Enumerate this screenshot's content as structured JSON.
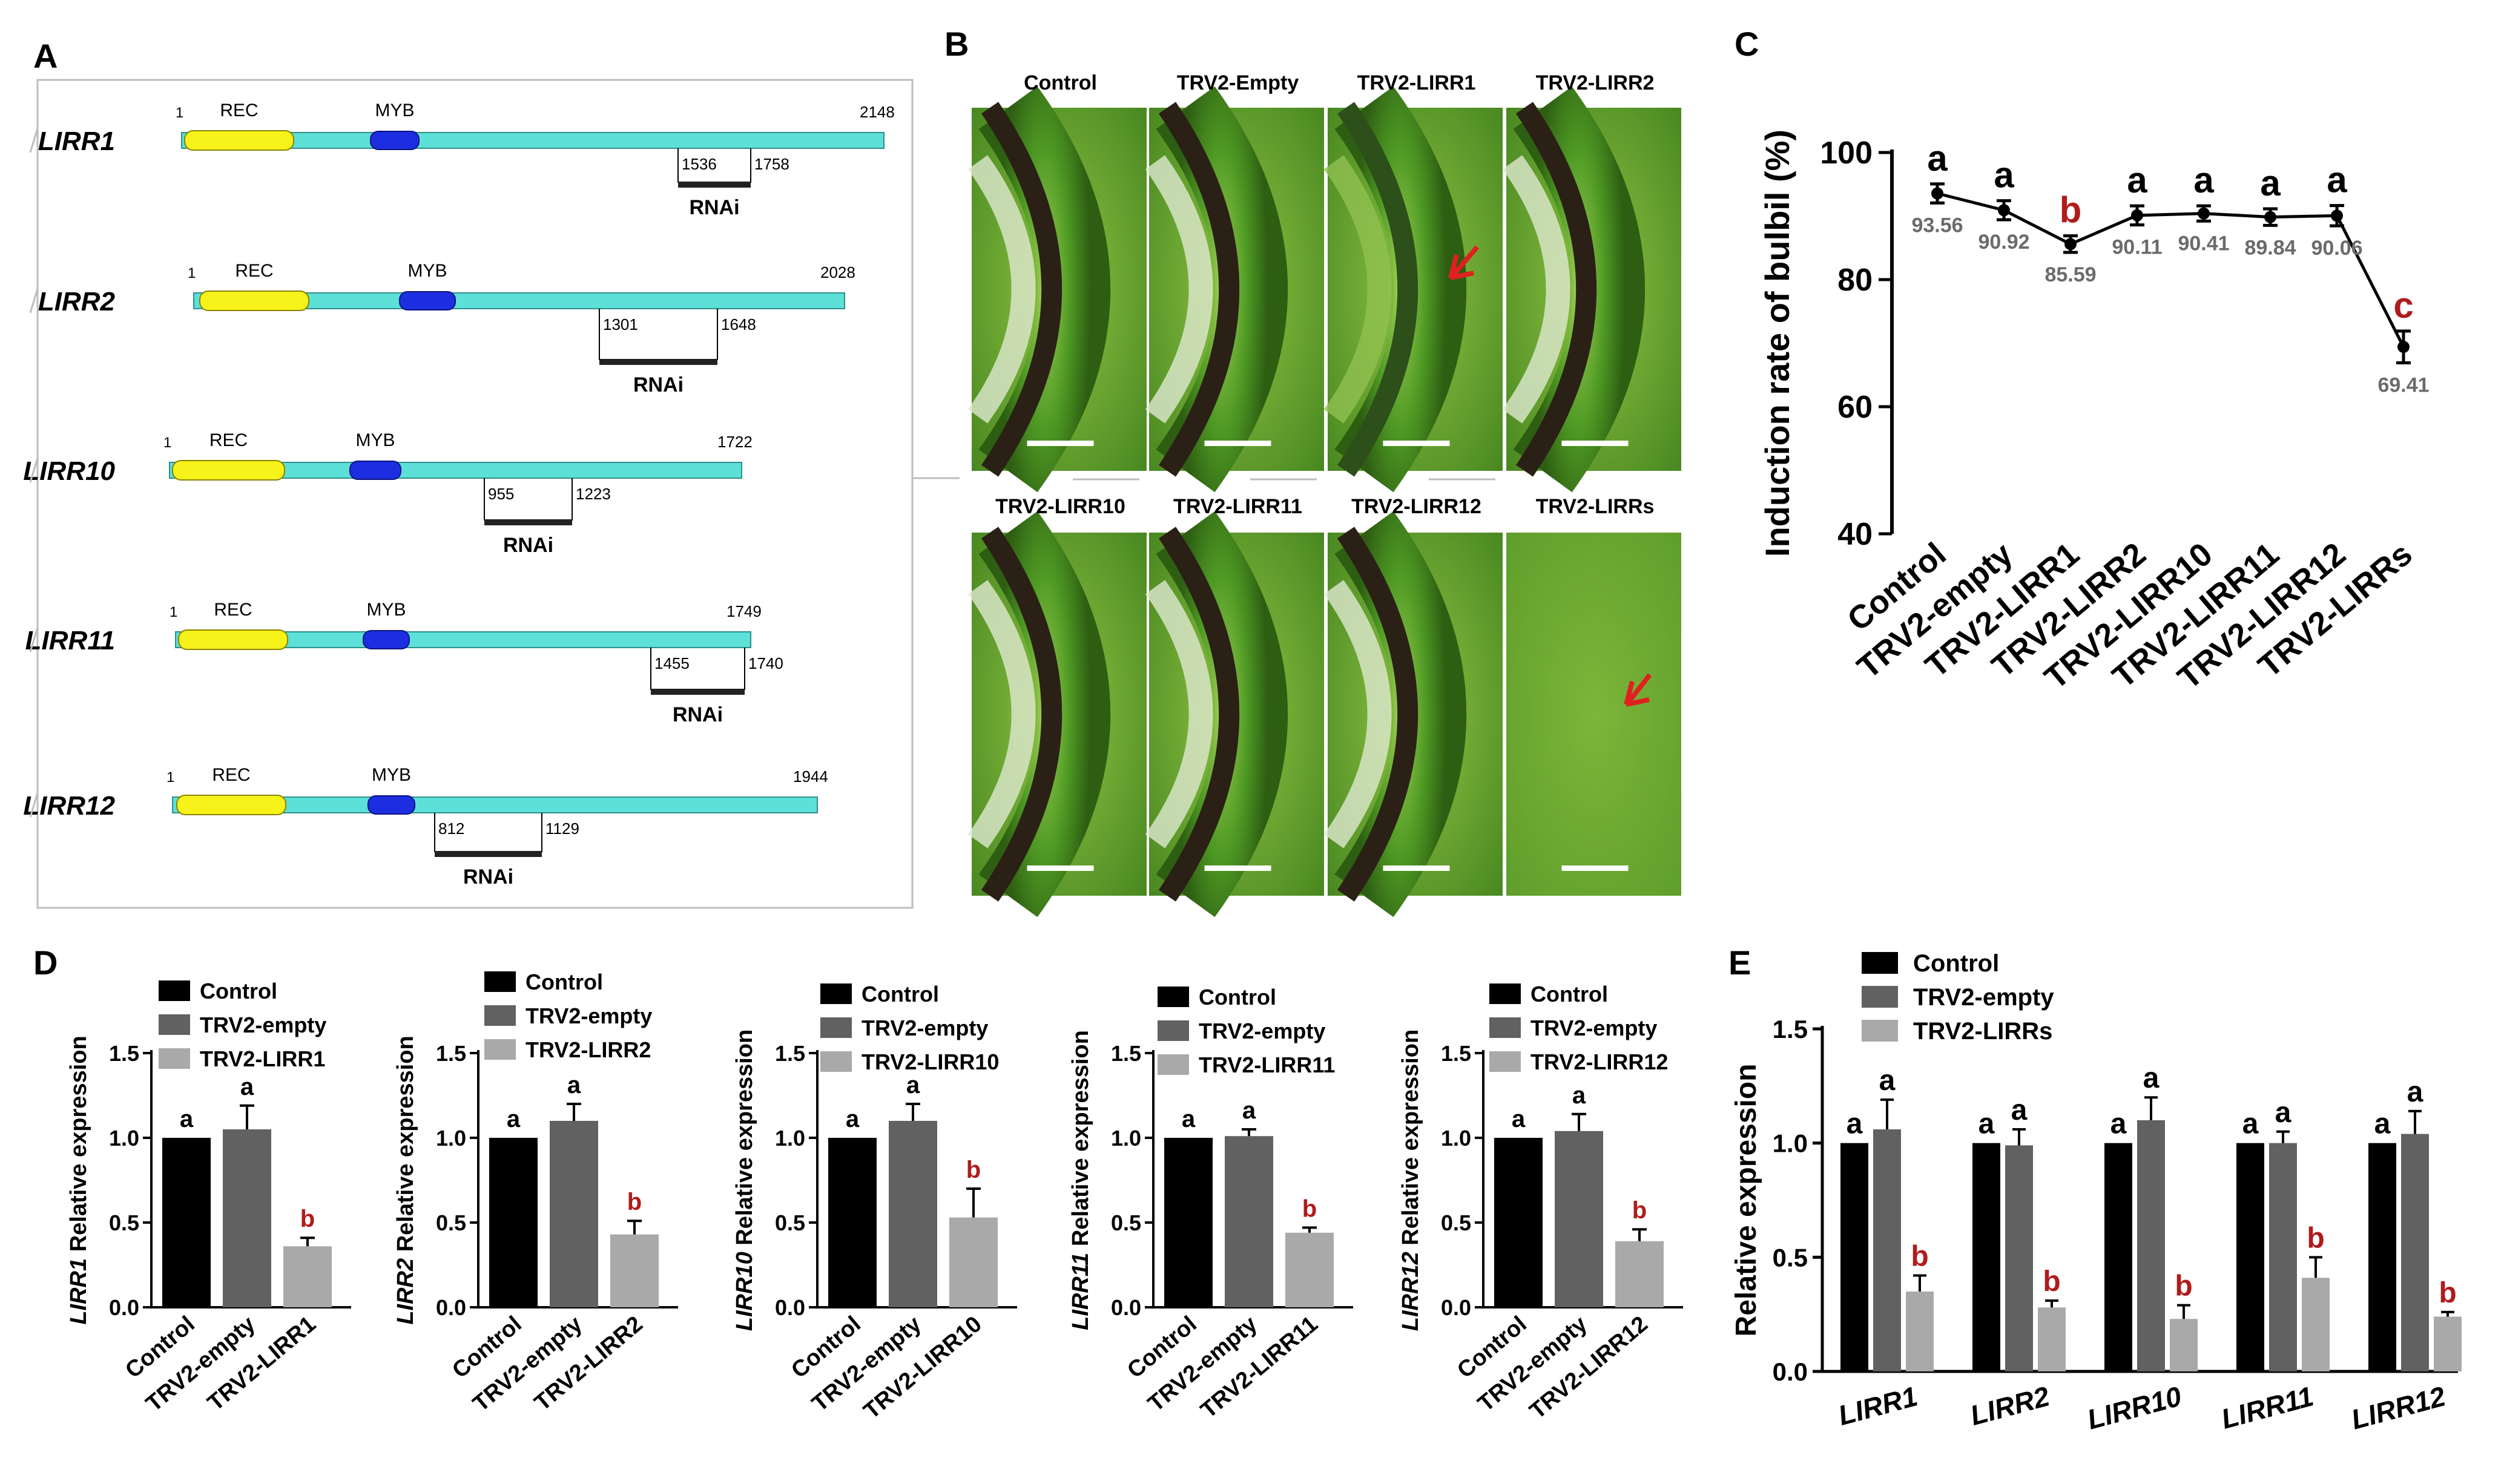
{
  "colors": {
    "black": "#000000",
    "dark_gray": "#616161",
    "light_gray": "#a9a9a9",
    "sig_red": "#b01b1b",
    "arrow_red": "#e02020",
    "rec_yellow": "#f7f21a",
    "myb_blue": "#1d2ee0",
    "gene_cyan": "#5ce0d8",
    "scale_bar": "#ffffff",
    "point_gray": "#6b6b6b"
  },
  "panel_letters": {
    "a": "A",
    "b": "B",
    "c": "C",
    "d": "D",
    "e": "E"
  },
  "panel_a": {
    "domain_labels": {
      "rec": "REC",
      "myb": "MYB",
      "rnai": "RNAi"
    },
    "genes": [
      {
        "name": "LIRR1",
        "start": "1",
        "end": "2148",
        "rnai_start": "1536",
        "rnai_end": "1758"
      },
      {
        "name": "LIRR2",
        "start": "1",
        "end": "2028",
        "rnai_start": "1301",
        "rnai_end": "1648"
      },
      {
        "name": "LIRR10",
        "start": "1",
        "end": "1722",
        "rnai_start": "955",
        "rnai_end": "1223"
      },
      {
        "name": "LIRR11",
        "start": "1",
        "end": "1749",
        "rnai_start": "1455",
        "rnai_end": "1740"
      },
      {
        "name": "LIRR12",
        "start": "1",
        "end": "1944",
        "rnai_start": "812",
        "rnai_end": "1129"
      }
    ]
  },
  "panel_b": {
    "labels_top": [
      "Control",
      "TRV2-Empty",
      "TRV2-LIRR1",
      "TRV2-LIRR2"
    ],
    "labels_bottom": [
      "TRV2-LIRR10",
      "TRV2-LIRR11",
      "TRV2-LIRR12",
      "TRV2-LIRRs"
    ],
    "arrows": [
      "TRV2-LIRR1",
      "TRV2-LIRRs"
    ]
  },
  "chart_data": [
    {
      "id": "C",
      "type": "line",
      "title": "",
      "ylabel": "Induction rate of bulbil (%)",
      "ylim": [
        40,
        100
      ],
      "yticks": [
        40,
        60,
        80,
        100
      ],
      "categories": [
        "Control",
        "TRV2-empty",
        "TRV2-LIRR1",
        "TRV2-LIRR2",
        "TRV2-LIRR10",
        "TRV2-LIRR11",
        "TRV2-LIRR12",
        "TRV2-LIRRs"
      ],
      "values": [
        93.56,
        90.92,
        85.59,
        90.11,
        90.41,
        89.84,
        90.06,
        69.41
      ],
      "errors": [
        1.5,
        1.5,
        1.3,
        1.5,
        1.2,
        1.3,
        1.6,
        2.5
      ],
      "value_labels": [
        "93.56",
        "90.92",
        "85.59",
        "90.11",
        "90.41",
        "89.84",
        "90.06",
        "69.41"
      ],
      "letters": [
        "a",
        "a",
        "b",
        "a",
        "a",
        "a",
        "a",
        "c"
      ],
      "letters_red": [
        false,
        false,
        true,
        false,
        false,
        false,
        false,
        true
      ]
    },
    {
      "id": "D1",
      "type": "bar",
      "gene": "LIRR1",
      "ylabel_suffix": " Relative expression",
      "ylim": [
        0,
        1.5
      ],
      "yticks": [
        "0.0",
        "0.5",
        "1.0",
        "1.5"
      ],
      "categories": [
        "Control",
        "TRV2-empty",
        "TRV2-LIRR1"
      ],
      "values": [
        1.0,
        1.05,
        0.36
      ],
      "errors": [
        0,
        0.14,
        0.05
      ],
      "letters": [
        "a",
        "a",
        "b"
      ],
      "legend": [
        "Control",
        "TRV2-empty",
        "TRV2-LIRR1"
      ]
    },
    {
      "id": "D2",
      "type": "bar",
      "gene": "LIRR2",
      "ylabel_suffix": " Relative expression",
      "ylim": [
        0,
        1.5
      ],
      "yticks": [
        "0.0",
        "0.5",
        "1.0",
        "1.5"
      ],
      "categories": [
        "Control",
        "TRV2-empty",
        "TRV2-LIRR2"
      ],
      "values": [
        1.0,
        1.1,
        0.43
      ],
      "errors": [
        0,
        0.1,
        0.08
      ],
      "letters": [
        "a",
        "a",
        "b"
      ],
      "legend": [
        "Control",
        "TRV2-empty",
        "TRV2-LIRR2"
      ]
    },
    {
      "id": "D3",
      "type": "bar",
      "gene": "LIRR10",
      "ylabel_suffix": " Relative expression",
      "ylim": [
        0,
        1.5
      ],
      "yticks": [
        "0.0",
        "0.5",
        "1.0",
        "1.5"
      ],
      "categories": [
        "Control",
        "TRV2-empty",
        "TRV2-LIRR10"
      ],
      "values": [
        1.0,
        1.1,
        0.53
      ],
      "errors": [
        0,
        0.1,
        0.17
      ],
      "letters": [
        "a",
        "a",
        "b"
      ],
      "legend": [
        "Control",
        "TRV2-empty",
        "TRV2-LIRR10"
      ]
    },
    {
      "id": "D4",
      "type": "bar",
      "gene": "LIRR11",
      "ylabel_suffix": " Relative expression",
      "ylim": [
        0,
        1.5
      ],
      "yticks": [
        "0.0",
        "0.5",
        "1.0",
        "1.5"
      ],
      "categories": [
        "Control",
        "TRV2-empty",
        "TRV2-LIRR11"
      ],
      "values": [
        1.0,
        1.01,
        0.44
      ],
      "errors": [
        0,
        0.04,
        0.03
      ],
      "letters": [
        "a",
        "a",
        "b"
      ],
      "legend": [
        "Control",
        "TRV2-empty",
        "TRV2-LIRR11"
      ]
    },
    {
      "id": "D5",
      "type": "bar",
      "gene": "LIRR12",
      "ylabel_suffix": " Relative expression",
      "ylim": [
        0,
        1.5
      ],
      "yticks": [
        "0.0",
        "0.5",
        "1.0",
        "1.5"
      ],
      "categories": [
        "Control",
        "TRV2-empty",
        "TRV2-LIRR12"
      ],
      "values": [
        1.0,
        1.04,
        0.39
      ],
      "errors": [
        0,
        0.1,
        0.07
      ],
      "letters": [
        "a",
        "a",
        "b"
      ],
      "legend": [
        "Control",
        "TRV2-empty",
        "TRV2-LIRR12"
      ]
    },
    {
      "id": "E",
      "type": "bar",
      "ylabel": "Relative expression",
      "ylim": [
        0,
        1.5
      ],
      "yticks": [
        "0.0",
        "0.5",
        "1.0",
        "1.5"
      ],
      "categories": [
        "LIRR1",
        "LIRR2",
        "LIRR10",
        "LIRR11",
        "LIRR12"
      ],
      "series": [
        {
          "name": "Control",
          "values": [
            1.0,
            1.0,
            1.0,
            1.0,
            1.0
          ],
          "errors": [
            0,
            0,
            0,
            0,
            0
          ],
          "letters": [
            "a",
            "a",
            "a",
            "a",
            "a"
          ]
        },
        {
          "name": "TRV2-empty",
          "values": [
            1.06,
            0.99,
            1.1,
            1.0,
            1.04
          ],
          "errors": [
            0.13,
            0.07,
            0.1,
            0.05,
            0.1
          ],
          "letters": [
            "a",
            "a",
            "a",
            "a",
            "a"
          ]
        },
        {
          "name": "TRV2-LIRRs",
          "values": [
            0.35,
            0.28,
            0.23,
            0.41,
            0.24
          ],
          "errors": [
            0.07,
            0.03,
            0.06,
            0.09,
            0.02
          ],
          "letters": [
            "b",
            "b",
            "b",
            "b",
            "b"
          ]
        }
      ]
    }
  ]
}
